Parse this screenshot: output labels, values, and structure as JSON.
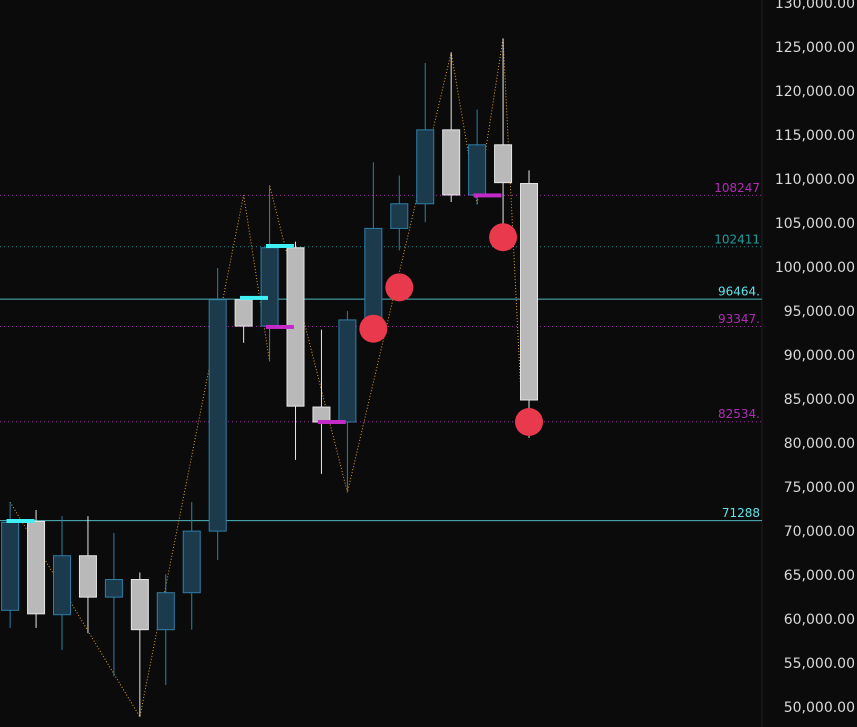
{
  "chart_data": {
    "type": "candlestick",
    "xlim": [
      -0.39,
      28.98
    ],
    "ylim": [
      47841,
      130455
    ],
    "yticks": [
      {
        "value": 130000,
        "label": "130,000.00"
      },
      {
        "value": 125000,
        "label": "125,000.00"
      },
      {
        "value": 120000,
        "label": "120,000.00"
      },
      {
        "value": 115000,
        "label": "115,000.00"
      },
      {
        "value": 110000,
        "label": "110,000.00"
      },
      {
        "value": 105000,
        "label": "105,000.00"
      },
      {
        "value": 100000,
        "label": "100,000.00"
      },
      {
        "value": 95000,
        "label": "95,000.00"
      },
      {
        "value": 90000,
        "label": "90,000.00"
      },
      {
        "value": 85000,
        "label": "85,000.00"
      },
      {
        "value": 80000,
        "label": "80,000.00"
      },
      {
        "value": 75000,
        "label": "75,000.00"
      },
      {
        "value": 70000,
        "label": "70,000.00"
      },
      {
        "value": 65000,
        "label": "65,000.00"
      },
      {
        "value": 60000,
        "label": "60,000.00"
      },
      {
        "value": 55000,
        "label": "55,000.00"
      },
      {
        "value": 50000,
        "label": "50,000.00"
      }
    ],
    "open": [
      61100,
      71200,
      60600,
      67300,
      62600,
      64600,
      58900,
      63100,
      70100,
      96400,
      93400,
      102300,
      84200,
      82500,
      94100,
      104500,
      107300,
      115700,
      108300,
      114000,
      109600
    ],
    "high": [
      73400,
      72500,
      71800,
      71800,
      69900,
      65400,
      65200,
      73400,
      100000,
      96700,
      109400,
      103000,
      93000,
      95100,
      112000,
      110500,
      123300,
      124500,
      118000,
      126100,
      111100
    ],
    "low": [
      59100,
      59100,
      56600,
      58500,
      53600,
      49000,
      52600,
      58900,
      66800,
      91500,
      89400,
      78200,
      76600,
      74500,
      92500,
      102000,
      105200,
      107500,
      107200,
      104900,
      80700
    ],
    "close": [
      71100,
      60700,
      67300,
      62600,
      64600,
      58900,
      63100,
      70100,
      96400,
      93400,
      102300,
      84300,
      82500,
      94100,
      104500,
      107300,
      115700,
      108300,
      114000,
      109700,
      85000
    ],
    "up_color": "#1b3a4b",
    "up_border": "#2f7fa8",
    "down_color": "#b9b9b9",
    "down_border": "#e6e6e6",
    "levels": [
      {
        "value": 108247,
        "color": "#b12bb5",
        "dashed": true
      },
      {
        "value": 102411,
        "color": "#1f9e9e",
        "dashed": true
      },
      {
        "value": 96464,
        "label": "96464.",
        "color": "#5fe3ea",
        "dashed": false
      },
      {
        "value": 93347,
        "label": "93347.",
        "color": "#b12bb5",
        "dashed": true
      },
      {
        "value": 82534,
        "label": "82534.",
        "color": "#b12bb5",
        "dashed": true
      },
      {
        "value": 71288,
        "color": "#5fe3ea",
        "dashed": false
      }
    ],
    "pivots": [
      {
        "index": 0.4,
        "value": 71250,
        "color": "#3ff0f5"
      },
      {
        "index": 9.4,
        "value": 96600,
        "color": "#3ff0f5"
      },
      {
        "index": 10.4,
        "value": 102500,
        "color": "#3ff0f5"
      },
      {
        "index": 10.4,
        "value": 93300,
        "color": "#c22bc8"
      },
      {
        "index": 12.4,
        "value": 82500,
        "color": "#c22bc8"
      },
      {
        "index": 18.4,
        "value": 108250,
        "color": "#c22bc8"
      }
    ],
    "markers": [
      {
        "index": 14,
        "value": 93100
      },
      {
        "index": 15,
        "value": 97800
      },
      {
        "index": 19,
        "value": 103500
      },
      {
        "index": 20,
        "value": 82500
      }
    ],
    "marker_color": "#e8394d",
    "zigzag": {
      "x": [
        0,
        5,
        9,
        10,
        10,
        13,
        17,
        18,
        19,
        19.7
      ],
      "y": [
        73400,
        49000,
        108300,
        89400,
        109400,
        74500,
        124500,
        107200,
        126100,
        85000
      ],
      "color": "#e0a030"
    }
  }
}
